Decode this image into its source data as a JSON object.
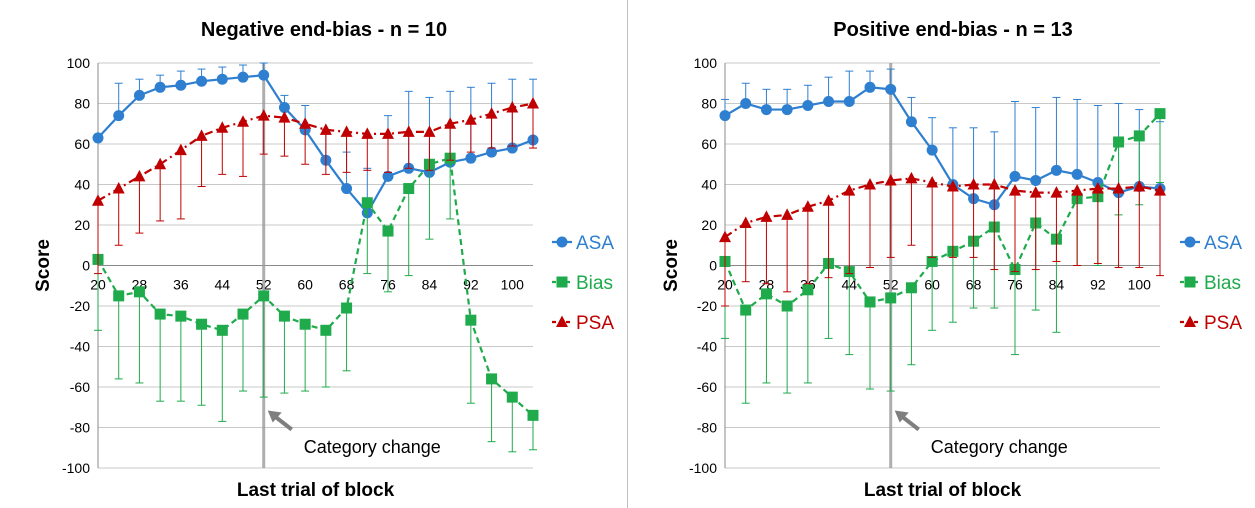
{
  "chart_data": [
    {
      "type": "line",
      "title": "Negative end-bias - n = 10",
      "xlabel": "Last trial of block",
      "ylabel": "Score",
      "ylim": [
        -100,
        100
      ],
      "yticks": [
        100,
        80,
        60,
        40,
        20,
        0,
        -20,
        -40,
        -60,
        -80,
        -100
      ],
      "xtick_labels": [
        "20",
        "28",
        "36",
        "44",
        "52",
        "60",
        "68",
        "76",
        "84",
        "92",
        "100"
      ],
      "x": [
        20,
        24,
        28,
        32,
        36,
        40,
        44,
        48,
        52,
        56,
        60,
        64,
        68,
        72,
        76,
        80,
        84,
        88,
        92,
        96,
        100,
        104
      ],
      "grid": true,
      "legend_position": "right",
      "annotation": {
        "text": "Category change",
        "x": 52
      },
      "series": [
        {
          "name": "ASA",
          "color": "#2E7FD0",
          "marker": "circle",
          "line": "solid",
          "values": [
            63,
            74,
            84,
            88,
            89,
            91,
            92,
            93,
            94,
            78,
            67,
            52,
            38,
            26,
            44,
            48,
            46,
            51,
            53,
            56,
            58,
            62
          ],
          "err_up": [
            0,
            16,
            8,
            6,
            7,
            6,
            6,
            6,
            6,
            6,
            12,
            15,
            18,
            22,
            30,
            38,
            37,
            35,
            35,
            34,
            34,
            30
          ]
        },
        {
          "name": "Bias",
          "color": "#1FAA4C",
          "marker": "square",
          "line": "dashed",
          "values": [
            3,
            -15,
            -13,
            -24,
            -25,
            -29,
            -32,
            -24,
            -15,
            -25,
            -29,
            -32,
            -21,
            31,
            17,
            38,
            50,
            53,
            -27,
            -56,
            -65,
            -74
          ],
          "err_down": [
            35,
            41,
            45,
            43,
            42,
            40,
            45,
            38,
            50,
            38,
            33,
            28,
            31,
            35,
            30,
            43,
            37,
            30,
            41,
            31,
            27,
            17
          ]
        },
        {
          "name": "PSA",
          "color": "#C00000",
          "marker": "triangle",
          "line": "dashdot",
          "values": [
            32,
            38,
            44,
            50,
            57,
            64,
            68,
            71,
            74,
            73,
            70,
            67,
            66,
            65,
            65,
            66,
            66,
            70,
            72,
            75,
            78,
            80
          ],
          "err_down": [
            36,
            28,
            28,
            28,
            34,
            25,
            23,
            27,
            19,
            19,
            20,
            22,
            20,
            18,
            19,
            18,
            19,
            18,
            16,
            17,
            19,
            22
          ]
        }
      ]
    },
    {
      "type": "line",
      "title": "Positive end-bias - n = 13",
      "xlabel": "Last trial of block",
      "ylabel": "Score",
      "ylim": [
        -100,
        100
      ],
      "yticks": [
        100,
        80,
        60,
        40,
        20,
        0,
        -20,
        -40,
        -60,
        -80,
        -100
      ],
      "xtick_labels": [
        "20",
        "28",
        "36",
        "44",
        "52",
        "60",
        "68",
        "76",
        "84",
        "92",
        "100"
      ],
      "x": [
        20,
        24,
        28,
        32,
        36,
        40,
        44,
        48,
        52,
        56,
        60,
        64,
        68,
        72,
        76,
        80,
        84,
        88,
        92,
        96,
        100,
        104
      ],
      "grid": true,
      "legend_position": "right",
      "annotation": {
        "text": "Category change",
        "x": 52
      },
      "series": [
        {
          "name": "ASA",
          "color": "#2E7FD0",
          "marker": "circle",
          "line": "solid",
          "values": [
            74,
            80,
            77,
            77,
            79,
            81,
            81,
            88,
            87,
            71,
            57,
            40,
            33,
            30,
            44,
            42,
            47,
            45,
            41,
            36,
            39,
            38
          ],
          "err_up": [
            8,
            10,
            10,
            10,
            10,
            12,
            15,
            8,
            10,
            12,
            16,
            28,
            35,
            36,
            37,
            36,
            36,
            37,
            38,
            44,
            38,
            33
          ]
        },
        {
          "name": "Bias",
          "color": "#1FAA4C",
          "marker": "square",
          "line": "dashed",
          "values": [
            2,
            -22,
            -14,
            -20,
            -12,
            1,
            -3,
            -18,
            -16,
            -11,
            2,
            7,
            12,
            19,
            -2,
            21,
            13,
            33,
            34,
            61,
            64,
            75
          ],
          "err_down": [
            38,
            46,
            44,
            43,
            46,
            37,
            41,
            43,
            46,
            38,
            34,
            35,
            33,
            40,
            42,
            43,
            46,
            33,
            34,
            36,
            34,
            34
          ]
        },
        {
          "name": "PSA",
          "color": "#C00000",
          "marker": "triangle",
          "line": "dashdot",
          "values": [
            14,
            21,
            24,
            25,
            29,
            32,
            37,
            40,
            42,
            43,
            41,
            39,
            40,
            40,
            37,
            36,
            36,
            37,
            38,
            38,
            39,
            37
          ],
          "err_down": [
            34,
            29,
            33,
            38,
            38,
            38,
            41,
            41,
            38,
            33,
            37,
            35,
            36,
            42,
            40,
            38,
            34,
            37,
            37,
            39,
            40,
            42
          ]
        }
      ]
    }
  ]
}
